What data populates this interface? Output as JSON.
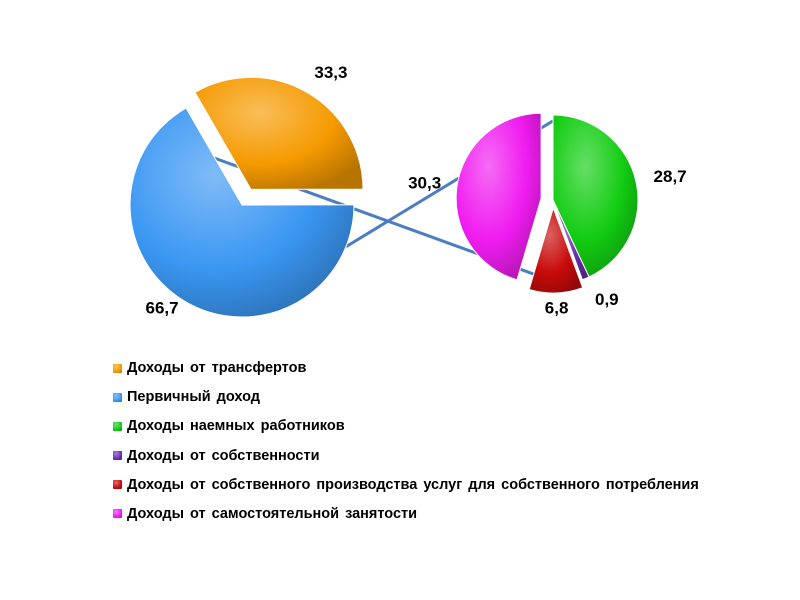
{
  "chart_data": {
    "type": "pie",
    "title": "",
    "primary": {
      "slices": [
        {
          "label": "Доходы от трансфертов",
          "value": 33.3,
          "value_label": "33,3",
          "color": "#f59a00"
        },
        {
          "label": "Первичный доход",
          "value": 66.7,
          "value_label": "66,7",
          "color": "#3a97f2"
        }
      ]
    },
    "secondary": {
      "breakdown_of": "Первичный доход",
      "slices": [
        {
          "label": "Доходы наемных работников",
          "value": 28.7,
          "value_label": "28,7",
          "color": "#12cc12"
        },
        {
          "label": "Доходы от собственности",
          "value": 0.9,
          "value_label": "0,9",
          "color": "#6a2fb0"
        },
        {
          "label": "Доходы от собственного производства услуг для собственного потребления",
          "value": 6.8,
          "value_label": "6,8",
          "color": "#c80b0b"
        },
        {
          "label": "Доходы от самостоятельной занятости",
          "value": 30.3,
          "value_label": "30,3",
          "color": "#f01cf0"
        }
      ]
    },
    "legend_position": "bottom-left",
    "legend": [
      {
        "label": "Доходы от трансфертов",
        "color": "#f59a00"
      },
      {
        "label": "Первичный доход",
        "color": "#3a97f2"
      },
      {
        "label": "Доходы наемных работников",
        "color": "#12cc12"
      },
      {
        "label": "Доходы от собственности",
        "color": "#6a2fb0"
      },
      {
        "label": "Доходы от собственного производства услуг для собственного потребления",
        "color": "#c80b0b"
      },
      {
        "label": "Доходы от самостоятельной занятости",
        "color": "#f01cf0"
      }
    ],
    "connector_color": "#4a7ec0"
  }
}
